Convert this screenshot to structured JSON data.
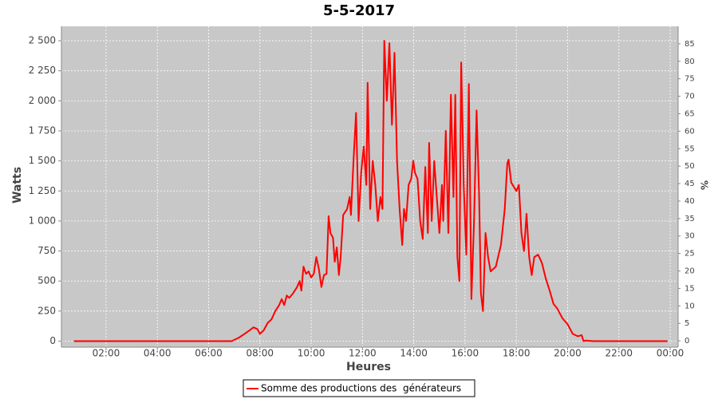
{
  "chart_data": {
    "type": "line",
    "title": "5-5-2017",
    "x_label": "Heures",
    "y_label": "Watts",
    "y2_label": "%",
    "x": [
      0.75,
      6.9,
      7.19,
      7.4,
      7.6,
      7.75,
      7.9,
      8.0,
      8.15,
      8.3,
      8.45,
      8.6,
      8.75,
      8.85,
      8.95,
      9.05,
      9.15,
      9.3,
      9.45,
      9.55,
      9.62,
      9.7,
      9.8,
      9.9,
      10.0,
      10.1,
      10.2,
      10.3,
      10.4,
      10.5,
      10.6,
      10.68,
      10.75,
      10.85,
      10.92,
      11.0,
      11.08,
      11.15,
      11.25,
      11.4,
      11.5,
      11.55,
      11.65,
      11.75,
      11.85,
      11.95,
      12.05,
      12.15,
      12.2,
      12.3,
      12.4,
      12.5,
      12.6,
      12.7,
      12.78,
      12.85,
      12.95,
      13.05,
      13.15,
      13.25,
      13.35,
      13.45,
      13.55,
      13.62,
      13.7,
      13.8,
      13.9,
      13.98,
      14.05,
      14.15,
      14.25,
      14.35,
      14.45,
      14.55,
      14.6,
      14.7,
      14.8,
      14.9,
      15.0,
      15.1,
      15.15,
      15.25,
      15.35,
      15.45,
      15.55,
      15.62,
      15.7,
      15.78,
      15.85,
      15.95,
      16.05,
      16.15,
      16.25,
      16.35,
      16.45,
      16.55,
      16.62,
      16.7,
      16.8,
      16.9,
      17.0,
      17.2,
      17.4,
      17.55,
      17.65,
      17.7,
      17.8,
      18.0,
      18.1,
      18.2,
      18.3,
      18.4,
      18.5,
      18.6,
      18.7,
      18.85,
      19.0,
      19.15,
      19.3,
      19.45,
      19.6,
      19.8,
      20.0,
      20.2,
      20.4,
      20.55,
      20.62,
      20.7,
      21.0,
      23.9
    ],
    "series": [
      {
        "name": "Somme des productions des  générateurs",
        "color": "#ff0000",
        "values": [
          0,
          0,
          30,
          60,
          90,
          115,
          100,
          60,
          90,
          150,
          180,
          250,
          300,
          350,
          300,
          380,
          360,
          400,
          450,
          500,
          420,
          620,
          560,
          580,
          530,
          560,
          700,
          600,
          450,
          550,
          560,
          1040,
          900,
          860,
          660,
          780,
          550,
          700,
          1050,
          1100,
          1200,
          1050,
          1500,
          1900,
          1000,
          1400,
          1620,
          1300,
          2150,
          1100,
          1500,
          1300,
          1000,
          1200,
          1100,
          2500,
          2000,
          2480,
          1800,
          2400,
          1500,
          1100,
          800,
          1100,
          1000,
          1300,
          1350,
          1500,
          1400,
          1350,
          1000,
          850,
          1450,
          900,
          1650,
          1000,
          1500,
          1200,
          900,
          1300,
          1000,
          1750,
          900,
          2050,
          1200,
          2050,
          700,
          500,
          2320,
          1300,
          720,
          2140,
          350,
          1000,
          1920,
          1200,
          400,
          250,
          900,
          700,
          580,
          620,
          800,
          1100,
          1480,
          1510,
          1320,
          1250,
          1300,
          900,
          750,
          1060,
          700,
          550,
          700,
          720,
          650,
          520,
          420,
          310,
          270,
          190,
          140,
          60,
          40,
          50,
          0,
          5,
          0,
          0
        ]
      }
    ],
    "xlim": [
      0.26,
      24.31
    ],
    "xticks": [
      {
        "value": 2,
        "label": "02:00"
      },
      {
        "value": 4,
        "label": "04:00"
      },
      {
        "value": 6,
        "label": "06:00"
      },
      {
        "value": 8,
        "label": "08:00"
      },
      {
        "value": 10,
        "label": "10:00"
      },
      {
        "value": 12,
        "label": "12:00"
      },
      {
        "value": 14,
        "label": "14:00"
      },
      {
        "value": 16,
        "label": "16:00"
      },
      {
        "value": 18,
        "label": "18:00"
      },
      {
        "value": 20,
        "label": "20:00"
      },
      {
        "value": 22,
        "label": "22:00"
      },
      {
        "value": 24,
        "label": "00:00"
      }
    ],
    "ylim": [
      -50,
      2620
    ],
    "yticks": [
      0,
      250,
      500,
      750,
      {
        "value": 1000,
        "label": "1 000"
      },
      {
        "value": 1250,
        "label": "1 250"
      },
      {
        "value": 1500,
        "label": "1 500"
      },
      {
        "value": 1750,
        "label": "1 750"
      },
      {
        "value": 2000,
        "label": "2 000"
      },
      {
        "value": 2250,
        "label": "2 250"
      },
      {
        "value": 2500,
        "label": "2 500"
      }
    ],
    "y2lim": [
      -1.8,
      90
    ],
    "y2ticks": [
      0,
      5,
      10,
      15,
      20,
      25,
      30,
      35,
      40,
      45,
      50,
      55,
      60,
      65,
      70,
      75,
      80,
      85
    ],
    "grid": true,
    "legend": "bottom"
  }
}
